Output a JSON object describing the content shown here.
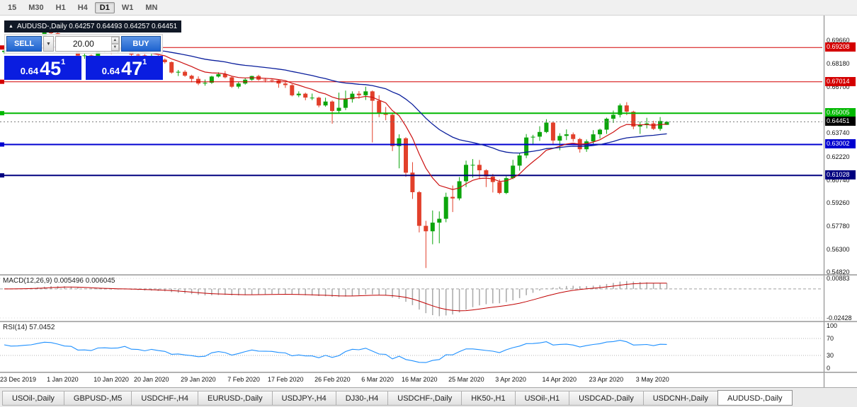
{
  "toolbar": {
    "timeframes": [
      {
        "label": "15",
        "active": false
      },
      {
        "label": "M30",
        "active": false
      },
      {
        "label": "H1",
        "active": false
      },
      {
        "label": "H4",
        "active": false
      },
      {
        "label": "D1",
        "active": true
      },
      {
        "label": "W1",
        "active": false
      },
      {
        "label": "MN",
        "active": false
      }
    ]
  },
  "chart": {
    "title": "AUDUSD-,Daily 0.64257 0.64493 0.64257 0.64451",
    "one_click": {
      "sell_label": "SELL",
      "buy_label": "BUY",
      "volume": "20.00",
      "sell_price": {
        "prefix": "0.64",
        "big": "45",
        "sup": "1"
      },
      "buy_price": {
        "prefix": "0.64",
        "big": "47",
        "sup": "1"
      }
    },
    "hlines": [
      {
        "label": "0.69208",
        "price": 0.69208,
        "color": "#d40000",
        "width": 1
      },
      {
        "label": "0.67014",
        "price": 0.67014,
        "color": "#d40000",
        "width": 1
      },
      {
        "label": "0.65005",
        "price": 0.65005,
        "color": "#00b800",
        "width": 2
      },
      {
        "label": "0.63002",
        "price": 0.63002,
        "color": "#0000d0",
        "width": 2
      },
      {
        "label": "0.61028",
        "price": 0.61028,
        "color": "#000080",
        "width": 2
      }
    ],
    "current_price": {
      "label": "0.64451",
      "value": 0.64451,
      "badge_color": "#000000"
    },
    "axis_labels": [
      {
        "text": "0.69660",
        "value": 0.6966
      },
      {
        "text": "0.68180",
        "value": 0.6818
      },
      {
        "text": "0.66700",
        "value": 0.667
      },
      {
        "text": "0.63740",
        "value": 0.6374
      },
      {
        "text": "0.62220",
        "value": 0.6222
      },
      {
        "text": "0.60740",
        "value": 0.6074
      },
      {
        "text": "0.59260",
        "value": 0.5926
      },
      {
        "text": "0.57780",
        "value": 0.5778
      },
      {
        "text": "0.56300",
        "value": 0.563
      },
      {
        "text": "0.54820",
        "value": 0.5482
      }
    ]
  },
  "chart_data": {
    "type": "candlestick",
    "symbol": "AUDUSD",
    "period": "Daily",
    "ohlc_display": {
      "open": "0.64257",
      "high": "0.64493",
      "low": "0.64257",
      "close": "0.64451"
    },
    "y_axis_visible_range": [
      0.5449,
      0.7125
    ],
    "colors": {
      "bull": "#0ca50c",
      "bear": "#e2402b",
      "ma_fast": "#cc1111",
      "ma_slow": "#0a1e9c"
    },
    "overlays": [
      {
        "name": "ma-fast",
        "type": "ema",
        "period": 10,
        "color": "#cc1111"
      },
      {
        "name": "ma-slow",
        "type": "ema",
        "period": 34,
        "color": "#0a1e9c"
      }
    ],
    "x_labels": [
      [
        0,
        "23 Dec 2019"
      ],
      [
        7,
        "1 Jan 2020"
      ],
      [
        14,
        "10 Jan 2020"
      ],
      [
        20,
        "20 Jan 2020"
      ],
      [
        27,
        "29 Jan 2020"
      ],
      [
        34,
        "7 Feb 2020"
      ],
      [
        40,
        "17 Feb 2020"
      ],
      [
        47,
        "26 Feb 2020"
      ],
      [
        54,
        "6 Mar 2020"
      ],
      [
        60,
        "16 Mar 2020"
      ],
      [
        67,
        "25 Mar 2020"
      ],
      [
        74,
        "3 Apr 2020"
      ],
      [
        81,
        "14 Apr 2020"
      ],
      [
        88,
        "23 Apr 2020"
      ],
      [
        95,
        "3 May 2020"
      ]
    ],
    "bars": [
      [
        0.6892,
        0.6903,
        0.688,
        0.69
      ],
      [
        0.69,
        0.6928,
        0.6895,
        0.6922
      ],
      [
        0.6922,
        0.693,
        0.6915,
        0.6925
      ],
      [
        0.6925,
        0.6944,
        0.6918,
        0.694
      ],
      [
        0.694,
        0.6958,
        0.693,
        0.6952
      ],
      [
        0.6952,
        0.699,
        0.6945,
        0.6985
      ],
      [
        0.6985,
        0.7025,
        0.6978,
        0.7018
      ],
      [
        0.7018,
        0.703,
        0.7005,
        0.7012
      ],
      [
        0.7012,
        0.7016,
        0.698,
        0.6986
      ],
      [
        0.6986,
        0.6995,
        0.6948,
        0.6952
      ],
      [
        0.6952,
        0.6962,
        0.6925,
        0.6945
      ],
      [
        0.6945,
        0.6955,
        0.686,
        0.6868
      ],
      [
        0.6868,
        0.6882,
        0.6848,
        0.687
      ],
      [
        0.687,
        0.6876,
        0.6838,
        0.6856
      ],
      [
        0.6856,
        0.691,
        0.685,
        0.69
      ],
      [
        0.69,
        0.692,
        0.6888,
        0.6903
      ],
      [
        0.6903,
        0.6912,
        0.6878,
        0.6895
      ],
      [
        0.6895,
        0.6906,
        0.6882,
        0.69
      ],
      [
        0.69,
        0.6933,
        0.6893,
        0.6925
      ],
      [
        0.6925,
        0.693,
        0.6868,
        0.6875
      ],
      [
        0.6875,
        0.6886,
        0.686,
        0.687
      ],
      [
        0.687,
        0.6878,
        0.6827,
        0.6845
      ],
      [
        0.6845,
        0.688,
        0.6838,
        0.6865
      ],
      [
        0.6865,
        0.6872,
        0.6806,
        0.6843
      ],
      [
        0.6843,
        0.685,
        0.6818,
        0.6827
      ],
      [
        0.6827,
        0.6831,
        0.6753,
        0.676
      ],
      [
        0.676,
        0.6777,
        0.6738,
        0.6765
      ],
      [
        0.6765,
        0.6775,
        0.6733,
        0.674
      ],
      [
        0.674,
        0.6746,
        0.6698,
        0.672
      ],
      [
        0.672,
        0.6736,
        0.668,
        0.669
      ],
      [
        0.669,
        0.6716,
        0.6676,
        0.6695
      ],
      [
        0.6695,
        0.674,
        0.6688,
        0.6735
      ],
      [
        0.6735,
        0.6762,
        0.6728,
        0.675
      ],
      [
        0.675,
        0.677,
        0.6723,
        0.673
      ],
      [
        0.673,
        0.6736,
        0.6662,
        0.667
      ],
      [
        0.667,
        0.67,
        0.6658,
        0.669
      ],
      [
        0.669,
        0.6726,
        0.6683,
        0.6715
      ],
      [
        0.6715,
        0.674,
        0.6708,
        0.6738
      ],
      [
        0.6738,
        0.6746,
        0.6708,
        0.6715
      ],
      [
        0.6715,
        0.6726,
        0.6698,
        0.6712
      ],
      [
        0.6712,
        0.672,
        0.6698,
        0.671
      ],
      [
        0.671,
        0.6715,
        0.6663,
        0.669
      ],
      [
        0.669,
        0.67,
        0.6662,
        0.668
      ],
      [
        0.668,
        0.6686,
        0.6608,
        0.6615
      ],
      [
        0.6615,
        0.664,
        0.6603,
        0.6625
      ],
      [
        0.6625,
        0.6632,
        0.6583,
        0.66
      ],
      [
        0.66,
        0.6626,
        0.6584,
        0.66
      ],
      [
        0.66,
        0.6606,
        0.6538,
        0.655
      ],
      [
        0.655,
        0.66,
        0.6542,
        0.6575
      ],
      [
        0.6575,
        0.6582,
        0.6433,
        0.6515
      ],
      [
        0.6515,
        0.6632,
        0.6503,
        0.6535
      ],
      [
        0.6535,
        0.6645,
        0.652,
        0.659
      ],
      [
        0.659,
        0.664,
        0.6568,
        0.6625
      ],
      [
        0.6625,
        0.6642,
        0.6593,
        0.6615
      ],
      [
        0.6615,
        0.667,
        0.6585,
        0.664
      ],
      [
        0.664,
        0.6646,
        0.6313,
        0.658
      ],
      [
        0.658,
        0.6615,
        0.6475,
        0.65
      ],
      [
        0.65,
        0.654,
        0.6455,
        0.649
      ],
      [
        0.649,
        0.6497,
        0.6258,
        0.629
      ],
      [
        0.629,
        0.6365,
        0.6148,
        0.634
      ],
      [
        0.634,
        0.6347,
        0.6093,
        0.612
      ],
      [
        0.612,
        0.6187,
        0.5952,
        0.5995
      ],
      [
        0.5995,
        0.6003,
        0.5738,
        0.578
      ],
      [
        0.578,
        0.5812,
        0.551,
        0.5745
      ],
      [
        0.5745,
        0.5878,
        0.5662,
        0.58
      ],
      [
        0.58,
        0.5872,
        0.5668,
        0.5825
      ],
      [
        0.5825,
        0.5992,
        0.5803,
        0.5965
      ],
      [
        0.5965,
        0.6038,
        0.5868,
        0.5955
      ],
      [
        0.5955,
        0.6092,
        0.5943,
        0.6065
      ],
      [
        0.6065,
        0.6197,
        0.6028,
        0.617
      ],
      [
        0.617,
        0.6207,
        0.6088,
        0.617
      ],
      [
        0.617,
        0.6201,
        0.6078,
        0.6135
      ],
      [
        0.6135,
        0.6142,
        0.6028,
        0.6095
      ],
      [
        0.6095,
        0.6112,
        0.5993,
        0.606
      ],
      [
        0.606,
        0.6077,
        0.5982,
        0.599
      ],
      [
        0.599,
        0.6097,
        0.5983,
        0.6085
      ],
      [
        0.6085,
        0.6202,
        0.6078,
        0.6165
      ],
      [
        0.6165,
        0.6247,
        0.6133,
        0.623
      ],
      [
        0.623,
        0.6367,
        0.6213,
        0.6345
      ],
      [
        0.6345,
        0.6362,
        0.6298,
        0.635
      ],
      [
        0.635,
        0.6417,
        0.6323,
        0.638
      ],
      [
        0.638,
        0.6462,
        0.6373,
        0.644
      ],
      [
        0.644,
        0.6447,
        0.6298,
        0.6325
      ],
      [
        0.6325,
        0.6372,
        0.6263,
        0.6355
      ],
      [
        0.6355,
        0.6397,
        0.6328,
        0.6365
      ],
      [
        0.6365,
        0.6377,
        0.6318,
        0.6335
      ],
      [
        0.6335,
        0.6342,
        0.6248,
        0.627
      ],
      [
        0.627,
        0.6332,
        0.6253,
        0.632
      ],
      [
        0.632,
        0.6392,
        0.6303,
        0.6365
      ],
      [
        0.6365,
        0.6402,
        0.6338,
        0.6395
      ],
      [
        0.6395,
        0.6472,
        0.6368,
        0.6465
      ],
      [
        0.6465,
        0.6517,
        0.6438,
        0.649
      ],
      [
        0.649,
        0.6562,
        0.6473,
        0.655
      ],
      [
        0.655,
        0.6571,
        0.6488,
        0.651
      ],
      [
        0.651,
        0.6516,
        0.6398,
        0.6415
      ],
      [
        0.6415,
        0.6447,
        0.6368,
        0.6425
      ],
      [
        0.6425,
        0.6471,
        0.6403,
        0.6435
      ],
      [
        0.6435,
        0.6452,
        0.6393,
        0.64
      ],
      [
        0.64,
        0.6476,
        0.6388,
        0.645
      ],
      [
        0.64257,
        0.64493,
        0.64257,
        0.64451
      ]
    ]
  },
  "macd": {
    "label": "MACD(12,26,9) 0.005496 0.006045",
    "params": {
      "fast": 12,
      "slow": 26,
      "signal": 9
    },
    "values": {
      "main": 0.005496,
      "signal": 0.006045
    },
    "axis": [
      {
        "text": "0.00883",
        "value": 0.00883
      },
      {
        "text": "-0.02428",
        "value": -0.02428
      }
    ],
    "histogram_color": "#a8a8a8",
    "signal_color": "#c00000"
  },
  "rsi": {
    "label": "RSI(14) 57.0452",
    "period": 14,
    "value": 57.0452,
    "levels": [
      100,
      70,
      30,
      0
    ],
    "dotted_levels": [
      70,
      30
    ],
    "color": "#1e90ff"
  },
  "tabs": [
    {
      "label": "USOil-,Daily",
      "active": false
    },
    {
      "label": "GBPUSD-,M5",
      "active": false
    },
    {
      "label": "USDCHF-,H4",
      "active": false
    },
    {
      "label": "EURUSD-,Daily",
      "active": false
    },
    {
      "label": "USDJPY-,H4",
      "active": false
    },
    {
      "label": "DJ30-,H4",
      "active": false
    },
    {
      "label": "USDCHF-,Daily",
      "active": false
    },
    {
      "label": "HK50-,H1",
      "active": false
    },
    {
      "label": "USOil-,H1",
      "active": false
    },
    {
      "label": "USDCAD-,Daily",
      "active": false
    },
    {
      "label": "USDCNH-,Daily",
      "active": false
    },
    {
      "label": "AUDUSD-,Daily",
      "active": true
    }
  ]
}
